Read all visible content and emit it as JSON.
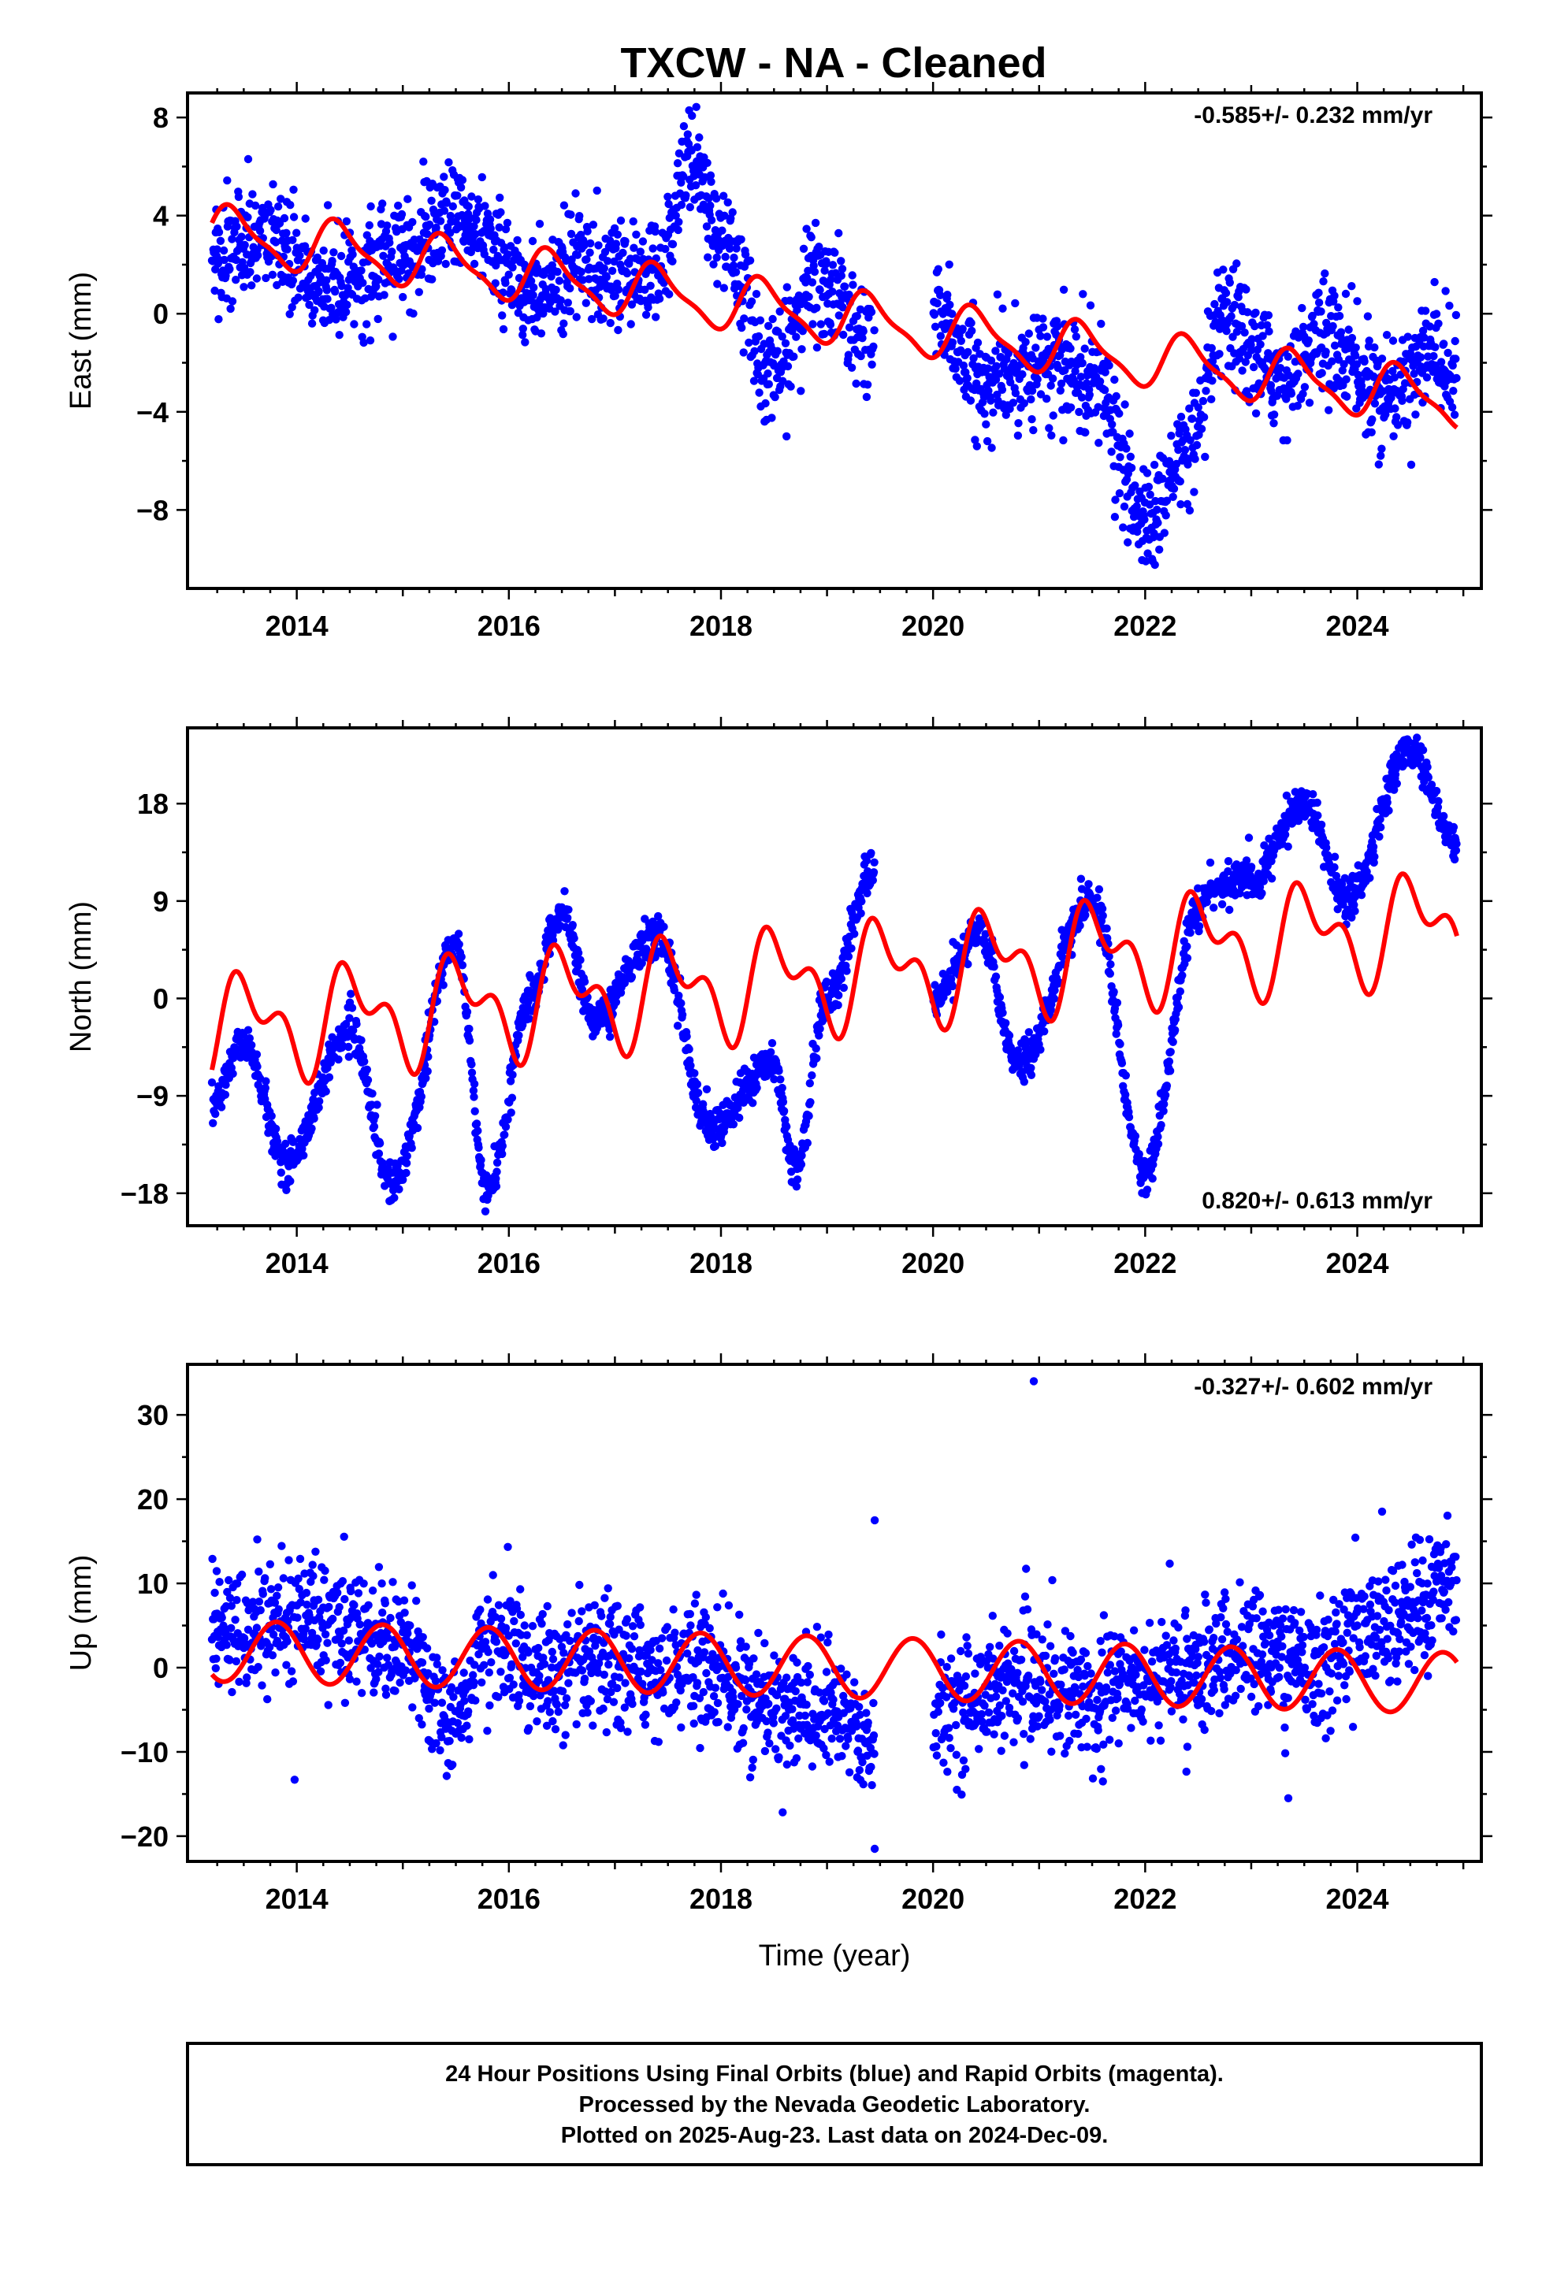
{
  "title": "TXCW  - NA - Cleaned",
  "footer": {
    "line1": "24 Hour Positions Using Final Orbits (blue) and Rapid Orbits (magenta).",
    "line2": "Processed by the Nevada Geodetic Laboratory.",
    "line3": "Plotted on 2025-Aug-23. Last data on 2024-Dec-09."
  },
  "colors": {
    "points": "#0000ff",
    "fit": "#ff0000",
    "frame": "#000000"
  },
  "chart_data": [
    {
      "type": "scatter",
      "component": "east",
      "ylabel": "East (mm)",
      "xlabel": "",
      "rate_text": "-0.585+/- 0.232 mm/yr",
      "rate_position": "top-right",
      "xlim": [
        2012.97,
        2025.17
      ],
      "ylim": [
        -11.2,
        9.0
      ],
      "xticks": [
        2014,
        2016,
        2018,
        2020,
        2022,
        2024
      ],
      "xtick_labels": [
        "2014",
        "2016",
        "2018",
        "2020",
        "2022",
        "2024"
      ],
      "yticks": [
        8,
        4,
        0,
        -4,
        -8
      ],
      "ytick_labels": [
        "8",
        "4",
        "0",
        "−4",
        "−8"
      ],
      "data_range": [
        2013.2,
        2024.94
      ],
      "gaps": [
        [
          2019.45,
          2020.0
        ]
      ],
      "approx_signal": [
        [
          2013.2,
          2.3
        ],
        [
          2013.7,
          3.2
        ],
        [
          2014.3,
          1.0
        ],
        [
          2014.8,
          2.0
        ],
        [
          2015.5,
          4.0
        ],
        [
          2016.2,
          1.0
        ],
        [
          2016.8,
          2.0
        ],
        [
          2017.4,
          1.5
        ],
        [
          2017.7,
          6.5
        ],
        [
          2018.0,
          3.0
        ],
        [
          2018.5,
          -2.5
        ],
        [
          2018.9,
          1.5
        ],
        [
          2019.4,
          -1.0
        ],
        [
          2020.0,
          0.0
        ],
        [
          2020.5,
          -3.0
        ],
        [
          2021.0,
          -2.0
        ],
        [
          2021.5,
          -2.5
        ],
        [
          2022.0,
          -8.5
        ],
        [
          2022.5,
          -5.0
        ],
        [
          2022.7,
          -0.5
        ],
        [
          2023.3,
          -2.5
        ],
        [
          2023.7,
          -1.0
        ],
        [
          2024.3,
          -3.5
        ],
        [
          2024.7,
          -1.5
        ],
        [
          2024.94,
          -2.5
        ]
      ],
      "noise_sd": 1.1,
      "fit": {
        "a": 3.3,
        "b": -0.585,
        "t0": 2013.2,
        "ann_c": 0.3,
        "ann_s": 1.0,
        "semi_c": 0.1,
        "semi_s": 0.3
      }
    },
    {
      "type": "scatter",
      "component": "north",
      "ylabel": "North (mm)",
      "xlabel": "",
      "rate_text": "0.820+/- 0.613 mm/yr",
      "rate_position": "bottom-right",
      "xlim": [
        2012.97,
        2025.17
      ],
      "ylim": [
        -21.0,
        25.0
      ],
      "xticks": [
        2014,
        2016,
        2018,
        2020,
        2022,
        2024
      ],
      "xtick_labels": [
        "2014",
        "2016",
        "2018",
        "2020",
        "2022",
        "2024"
      ],
      "yticks": [
        18,
        9,
        0,
        -9,
        -18
      ],
      "ytick_labels": [
        "18",
        "9",
        "0",
        "−9",
        "−18"
      ],
      "data_range": [
        2013.2,
        2024.94
      ],
      "gaps": [
        [
          2019.45,
          2020.0
        ]
      ],
      "approx_signal": [
        [
          2013.2,
          -10.0
        ],
        [
          2013.5,
          -4.0
        ],
        [
          2013.9,
          -15.0
        ],
        [
          2014.5,
          -3.0
        ],
        [
          2014.9,
          -17.0
        ],
        [
          2015.5,
          5.0
        ],
        [
          2015.8,
          -18.0
        ],
        [
          2016.2,
          0.0
        ],
        [
          2016.5,
          8.0
        ],
        [
          2016.8,
          -2.0
        ],
        [
          2017.4,
          6.0
        ],
        [
          2017.9,
          -12.0
        ],
        [
          2018.5,
          -6.0
        ],
        [
          2018.7,
          -16.0
        ],
        [
          2019.0,
          0.0
        ],
        [
          2019.45,
          12.0
        ],
        [
          2020.0,
          0.0
        ],
        [
          2020.45,
          6.0
        ],
        [
          2020.8,
          -6.0
        ],
        [
          2021.5,
          9.0
        ],
        [
          2022.0,
          -16.0
        ],
        [
          2022.5,
          8.0
        ],
        [
          2022.6,
          10.0
        ],
        [
          2023.0,
          11.0
        ],
        [
          2023.5,
          18.0
        ],
        [
          2023.9,
          9.0
        ],
        [
          2024.5,
          23.0
        ],
        [
          2024.94,
          14.0
        ]
      ],
      "noise_sd": 0.9,
      "fit": {
        "a": -2.8,
        "b": 0.82,
        "t0": 2013.2,
        "ann_c": -2.0,
        "ann_s": 3.2,
        "semi_c": -1.8,
        "semi_s": 1.8
      }
    },
    {
      "type": "scatter",
      "component": "up",
      "ylabel": "Up (mm)",
      "xlabel": "Time (year)",
      "rate_text": "-0.327+/- 0.602 mm/yr",
      "rate_position": "top-right",
      "xlim": [
        2012.97,
        2025.17
      ],
      "ylim": [
        -23.0,
        36.0
      ],
      "xticks": [
        2014,
        2016,
        2018,
        2020,
        2022,
        2024
      ],
      "xtick_labels": [
        "2014",
        "2016",
        "2018",
        "2020",
        "2022",
        "2024"
      ],
      "yticks": [
        30,
        20,
        10,
        0,
        -10,
        -20
      ],
      "ytick_labels": [
        "30",
        "20",
        "10",
        "0",
        "−10",
        "−20"
      ],
      "data_range": [
        2013.2,
        2024.94
      ],
      "gaps": [
        [
          2019.45,
          2020.0
        ]
      ],
      "approx_signal": [
        [
          2013.2,
          4.0
        ],
        [
          2014.0,
          6.0
        ],
        [
          2014.5,
          5.0
        ],
        [
          2015.0,
          3.0
        ],
        [
          2015.4,
          -6.0
        ],
        [
          2015.9,
          4.0
        ],
        [
          2016.3,
          -1.0
        ],
        [
          2017.0,
          0.0
        ],
        [
          2017.8,
          0.0
        ],
        [
          2018.5,
          -5.0
        ],
        [
          2019.0,
          -5.0
        ],
        [
          2019.45,
          -9.0
        ],
        [
          2020.0,
          -5.0
        ],
        [
          2020.8,
          -2.0
        ],
        [
          2021.5,
          -3.0
        ],
        [
          2022.0,
          -1.0
        ],
        [
          2022.5,
          0.0
        ],
        [
          2023.0,
          2.0
        ],
        [
          2023.6,
          0.0
        ],
        [
          2024.0,
          4.0
        ],
        [
          2024.5,
          6.0
        ],
        [
          2024.94,
          11.0
        ]
      ],
      "noise_sd": 3.6,
      "outliers": [
        [
          2020.95,
          34.0
        ],
        [
          2019.45,
          17.5
        ],
        [
          2019.45,
          -21.5
        ],
        [
          2013.98,
          -13.3
        ],
        [
          2023.35,
          -15.5
        ]
      ],
      "fit": {
        "a": 2.0,
        "b": -0.327,
        "t0": 2013.2,
        "ann_c": -2.8,
        "ann_s": -2.3,
        "semi_c": 0.0,
        "semi_s": 0.0
      }
    }
  ]
}
